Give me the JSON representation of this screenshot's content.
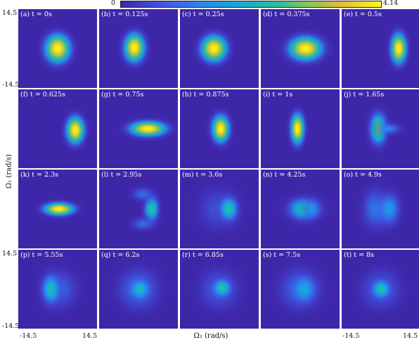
{
  "colorbar": {
    "min_label": "0",
    "max_label": "4.14",
    "colormap": "parula"
  },
  "axes": {
    "xlabel": "Ω₂ (rad/s)",
    "ylabel": "Ω₁ (rad/s)",
    "x_tick_min": "-14.5",
    "x_tick_max": "14.5",
    "y_tick_min": "-14.5",
    "y_tick_max": "14.5",
    "range": [
      -14.5,
      14.5
    ]
  },
  "colors": {
    "background": "#3E26A8",
    "panel_border": "#ffffff"
  },
  "panels": [
    {
      "label": "(a) t = 0s",
      "blobs": [
        {
          "x": 0.0,
          "y": 0.0,
          "sx": 3.2,
          "sy": 3.6,
          "amp": 1.0
        }
      ]
    },
    {
      "label": "(b) t = 0.125s",
      "blobs": [
        {
          "x": -1.5,
          "y": 0.3,
          "sx": 2.6,
          "sy": 3.6,
          "amp": 1.0
        }
      ]
    },
    {
      "label": "(c) t = 0.25s",
      "blobs": [
        {
          "x": -2.0,
          "y": 0.0,
          "sx": 3.3,
          "sy": 3.3,
          "amp": 1.0
        }
      ]
    },
    {
      "label": "(d) t = 0.375s",
      "blobs": [
        {
          "x": 2.0,
          "y": 0.0,
          "sx": 4.2,
          "sy": 3.0,
          "amp": 1.0
        }
      ]
    },
    {
      "label": "(e) t = 0.5s",
      "blobs": [
        {
          "x": 6.5,
          "y": 0.0,
          "sx": 2.0,
          "sy": 3.8,
          "amp": 1.0
        }
      ]
    },
    {
      "label": "(f) t = 0.625s",
      "blobs": [
        {
          "x": 6.5,
          "y": -0.5,
          "sx": 2.3,
          "sy": 3.4,
          "amp": 1.0
        }
      ]
    },
    {
      "label": "(g) t = 0.75s",
      "blobs": [
        {
          "x": 3.5,
          "y": 0.0,
          "sx": 4.6,
          "sy": 1.9,
          "amp": 1.0
        }
      ]
    },
    {
      "label": "(h) t = 0.875s",
      "blobs": [
        {
          "x": 0.5,
          "y": 0.0,
          "sx": 2.2,
          "sy": 3.4,
          "amp": 1.0
        }
      ]
    },
    {
      "label": "(i) t = 1s",
      "blobs": [
        {
          "x": -1.0,
          "y": 0.0,
          "sx": 1.7,
          "sy": 3.8,
          "amp": 1.0
        }
      ]
    },
    {
      "label": "(j) t = 1.65s",
      "blobs": [
        {
          "x": -1.0,
          "y": 0.0,
          "sx": 2.2,
          "sy": 4.0,
          "amp": 0.7
        },
        {
          "x": 3.0,
          "y": 0.0,
          "sx": 3.2,
          "sy": 1.5,
          "amp": 0.35
        }
      ]
    },
    {
      "label": "(k) t = 2.3s",
      "blobs": [
        {
          "x": 0.5,
          "y": 0.0,
          "sx": 3.8,
          "sy": 1.6,
          "amp": 1.0
        }
      ]
    },
    {
      "label": "(l) t = 2.95s",
      "blobs": [
        {
          "x": 4.8,
          "y": 0.0,
          "sx": 1.9,
          "sy": 3.4,
          "amp": 0.6
        },
        {
          "x": 1.5,
          "y": 5.5,
          "sx": 3.0,
          "sy": 1.8,
          "amp": 0.3
        },
        {
          "x": 1.5,
          "y": -5.5,
          "sx": 3.0,
          "sy": 1.8,
          "amp": 0.3
        }
      ]
    },
    {
      "label": "(m) t = 3.6s",
      "blobs": [
        {
          "x": 3.5,
          "y": 0.0,
          "sx": 2.3,
          "sy": 3.0,
          "amp": 0.6
        },
        {
          "x": 0.0,
          "y": 0.0,
          "sx": 6.0,
          "sy": 6.0,
          "amp": 0.25
        }
      ]
    },
    {
      "label": "(n) t = 4.25s",
      "blobs": [
        {
          "x": 1.5,
          "y": 0.0,
          "sx": 4.3,
          "sy": 3.0,
          "amp": 0.55
        },
        {
          "x": 4.5,
          "y": 0.0,
          "sx": 2.0,
          "sy": 2.5,
          "amp": 0.35
        }
      ]
    },
    {
      "label": "(o) t = 4.9s",
      "blobs": [
        {
          "x": 3.0,
          "y": 0.0,
          "sx": 3.0,
          "sy": 4.5,
          "amp": 0.4
        },
        {
          "x": -2.0,
          "y": 0.0,
          "sx": 3.5,
          "sy": 5.5,
          "amp": 0.35
        }
      ]
    },
    {
      "label": "(p) t = 5.55s",
      "blobs": [
        {
          "x": -2.5,
          "y": 0.0,
          "sx": 2.3,
          "sy": 3.8,
          "amp": 0.55
        },
        {
          "x": 0.5,
          "y": 0.0,
          "sx": 5.0,
          "sy": 5.5,
          "amp": 0.3
        }
      ]
    },
    {
      "label": "(q) t = 6.2s",
      "blobs": [
        {
          "x": 0.5,
          "y": 0.0,
          "sx": 2.5,
          "sy": 2.5,
          "amp": 0.55
        },
        {
          "x": 0.0,
          "y": 0.0,
          "sx": 5.5,
          "sy": 5.5,
          "amp": 0.35
        }
      ]
    },
    {
      "label": "(r) t = 6.85s",
      "blobs": [
        {
          "x": 1.0,
          "y": 0.5,
          "sx": 2.3,
          "sy": 2.3,
          "amp": 0.6
        },
        {
          "x": 0.0,
          "y": 0.0,
          "sx": 5.5,
          "sy": 5.5,
          "amp": 0.3
        }
      ]
    },
    {
      "label": "(s) t = 7.5s",
      "blobs": [
        {
          "x": 1.5,
          "y": 0.0,
          "sx": 3.0,
          "sy": 3.5,
          "amp": 0.45
        },
        {
          "x": 0.0,
          "y": 0.0,
          "sx": 5.5,
          "sy": 5.5,
          "amp": 0.35
        }
      ]
    },
    {
      "label": "(t) t = 8s",
      "blobs": [
        {
          "x": 0.0,
          "y": 0.0,
          "sx": 2.3,
          "sy": 2.3,
          "amp": 0.6
        },
        {
          "x": 0.0,
          "y": 0.0,
          "sx": 5.5,
          "sy": 5.5,
          "amp": 0.3
        }
      ]
    }
  ]
}
